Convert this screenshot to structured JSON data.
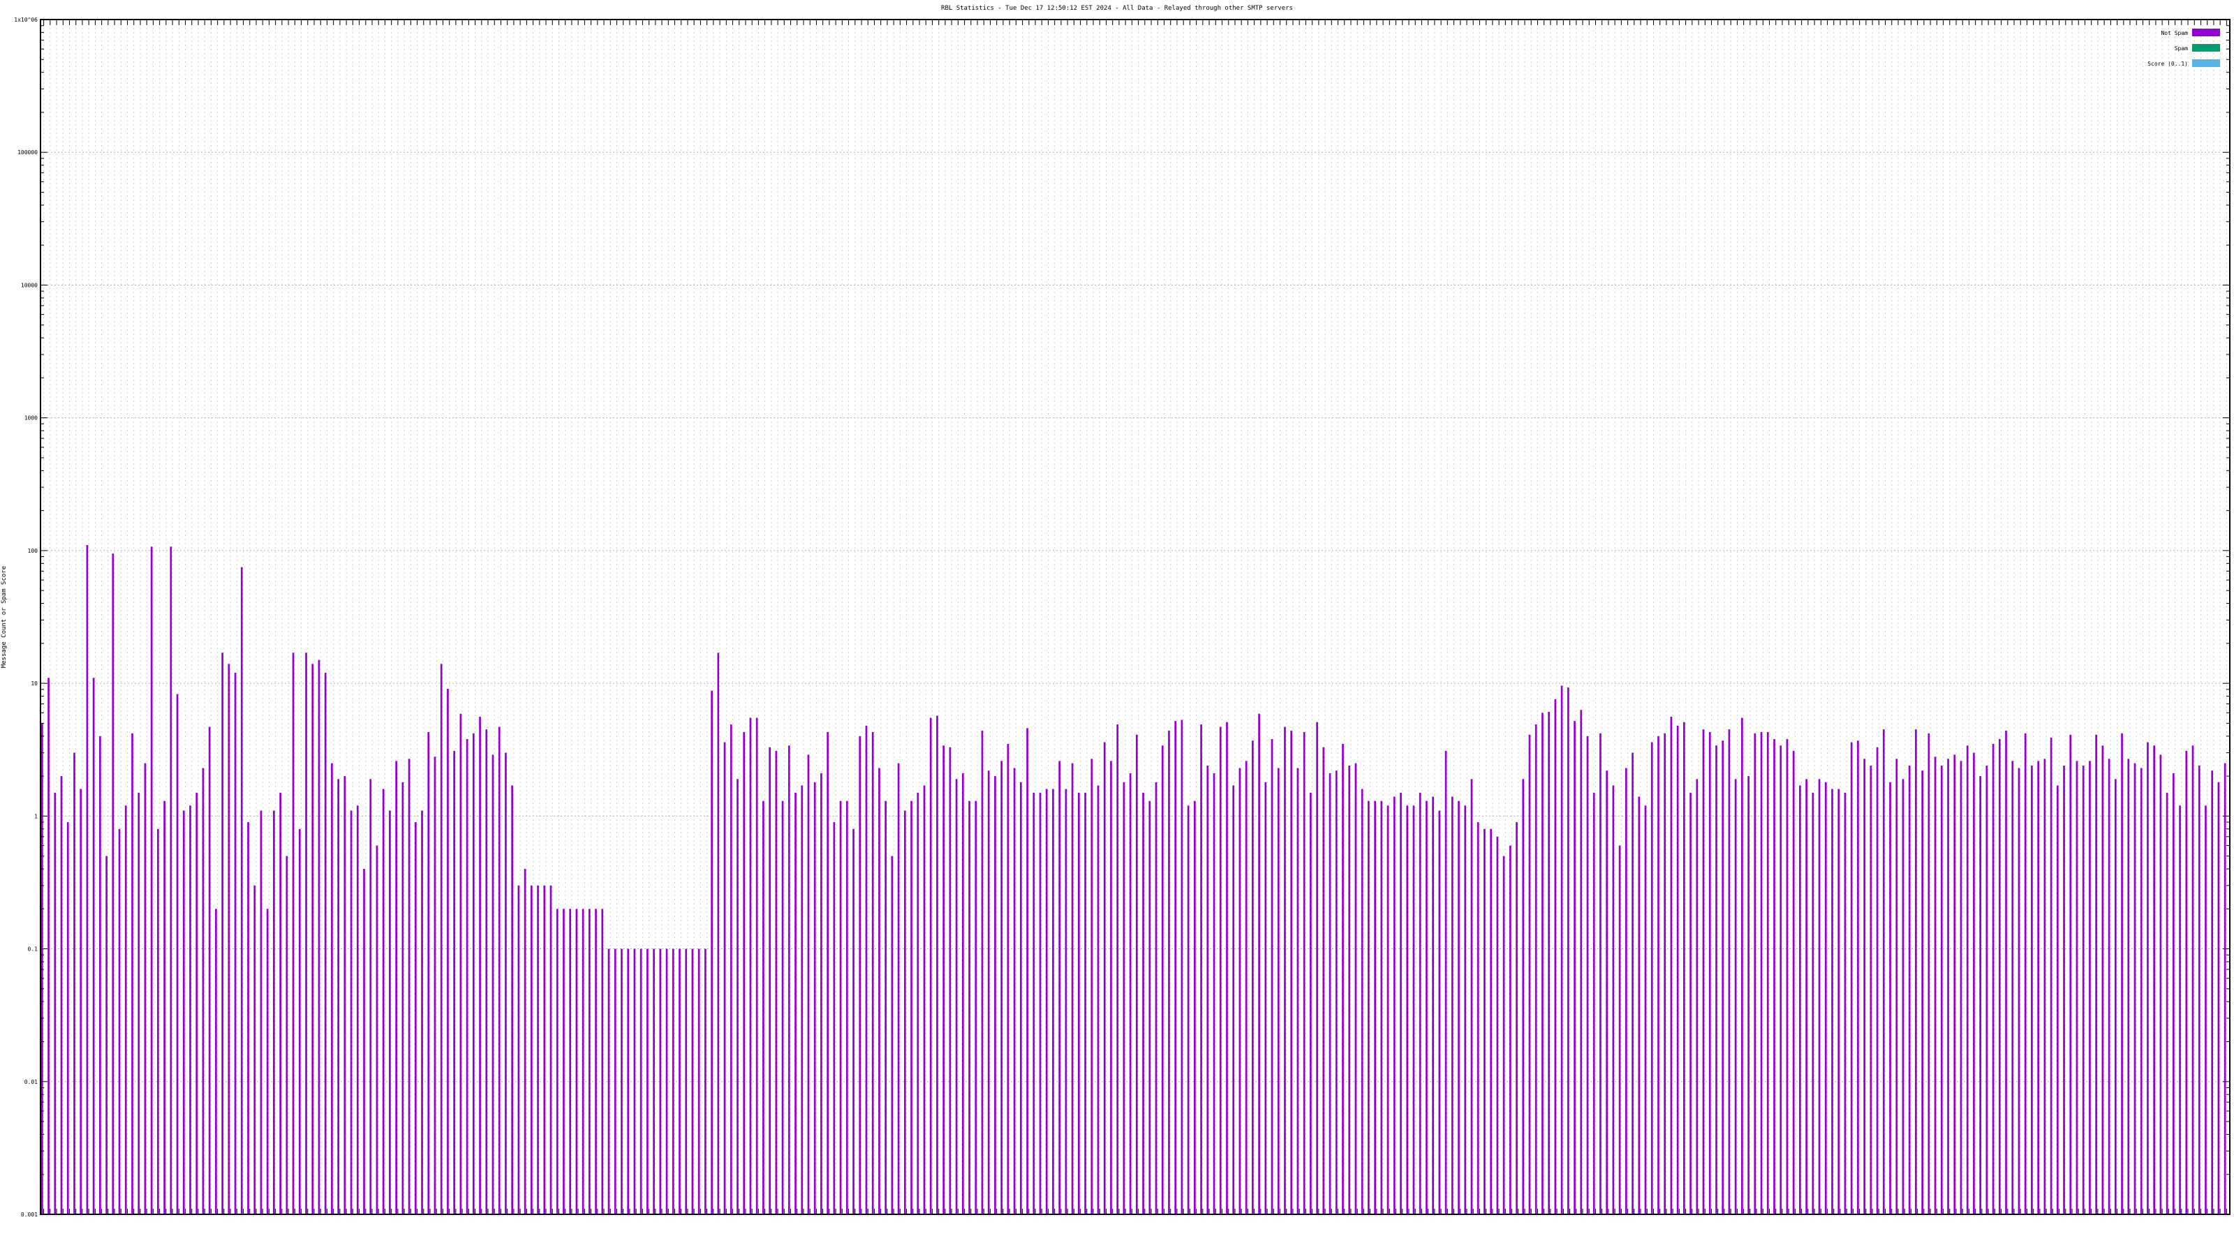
{
  "chart_data": {
    "type": "bar",
    "title": "RBL Statistics - Tue Dec 17 12:50:12 EST 2024 - All Data - Relayed through other SMTP servers",
    "ylabel": "Message Count or Spam Score",
    "y_scale": "log",
    "ylim": [
      0.001,
      1000000
    ],
    "y_ticks": [
      "0.001",
      "0.01",
      "0.1",
      "1",
      "10",
      "100",
      "1000",
      "10000",
      "100000",
      "1x10^06"
    ],
    "grid": true,
    "legend_position": "top-right",
    "series": [
      {
        "name": "Not Spam",
        "color": "#9400d3",
        "values": [
          5,
          11,
          1.5,
          2,
          0.9,
          3,
          1.6,
          110,
          11,
          4,
          0.5,
          95,
          0.8,
          1.2,
          4.2,
          1.5,
          2.5,
          107,
          0.8,
          1.3,
          107,
          8.3,
          1.1,
          1.2,
          1.5,
          2.3,
          4.7,
          0.2,
          17,
          14,
          12,
          75,
          0.9,
          0.3,
          1.1,
          0.2,
          1.1,
          1.5,
          0.5,
          17,
          0.8,
          17,
          14,
          15,
          12,
          2.5,
          1.9,
          2,
          1.1,
          1.2,
          0.4,
          1.9,
          0.6,
          1.6,
          1.1,
          2.6,
          1.8,
          2.7,
          0.9,
          1.1,
          4.3,
          2.8,
          14,
          9.1,
          3.1,
          5.9,
          3.8,
          4.2,
          5.6,
          4.5,
          2.9,
          4.7,
          3,
          1.7,
          0.3,
          0.4,
          0.3,
          0.3,
          0.3,
          0.3,
          0.2,
          0.2,
          0.2,
          0.2,
          0.2,
          0.2,
          0.2,
          0.2,
          0.1,
          0.1,
          0.1,
          0.1,
          0.1,
          0.1,
          0.1,
          0.1,
          0.1,
          0.1,
          0.1,
          0.1,
          0.1,
          0.1,
          0.1,
          0.1,
          8.8,
          17,
          3.6,
          4.9,
          1.9,
          4.3,
          5.5,
          5.5,
          1.3,
          3.3,
          3.1,
          1.3,
          3.4,
          1.5,
          1.7,
          2.9,
          1.8,
          2.1,
          4.3,
          0.9,
          1.3,
          1.3,
          0.8,
          4,
          4.8,
          4.3,
          2.3,
          1.3,
          0.5,
          2.5,
          1.1,
          1.3,
          1.5,
          1.7,
          5.5,
          5.7,
          3.4,
          3.3,
          1.9,
          2.1,
          1.3,
          1.3,
          4.4,
          2.2,
          2,
          2.6,
          3.5,
          2.3,
          1.8,
          4.6,
          1.5,
          1.5,
          1.6,
          1.6,
          2.6,
          1.6,
          2.5,
          1.5,
          1.5,
          2.7,
          1.7,
          3.6,
          2.6,
          4.9,
          1.8,
          2.1,
          4.1,
          1.5,
          1.3,
          1.8,
          3.4,
          4.4,
          5.2,
          5.3,
          1.2,
          1.3,
          4.9,
          2.4,
          2.1,
          4.7,
          5.1,
          1.7,
          2.3,
          2.6,
          3.7,
          5.9,
          1.8,
          3.8,
          2.3,
          4.7,
          4.4,
          2.3,
          4.3,
          1.5,
          5.1,
          3.3,
          2.1,
          2.2,
          3.5,
          2.4,
          2.5,
          1.6,
          1.3,
          1.3,
          1.3,
          1.2,
          1.4,
          1.5,
          1.2,
          1.2,
          1.5,
          1.3,
          1.4,
          1.1,
          3.1,
          1.4,
          1.3,
          1.2,
          1.9,
          0.9,
          0.8,
          0.8,
          0.7,
          0.5,
          0.6,
          0.9,
          1.9,
          4.1,
          4.9,
          6,
          6.1,
          7.6,
          9.6,
          9.3,
          5.2,
          6.3,
          4,
          1.5,
          4.2,
          2.2,
          1.7,
          0.6,
          2.3,
          3,
          1.4,
          1.2,
          3.6,
          4,
          4.2,
          5.6,
          4.8,
          5.1,
          1.5,
          1.9,
          4.5,
          4.3,
          3.4,
          3.7,
          4.5,
          1.9,
          5.5,
          2,
          4.2,
          4.3,
          4.3,
          3.8,
          3.4,
          3.8,
          3.1,
          1.7,
          1.9,
          1.5,
          1.9,
          1.8,
          1.6,
          1.6,
          1.5,
          3.6,
          3.7,
          2.7,
          2.4,
          3.3,
          4.5,
          1.8,
          2.7,
          1.9,
          2.4,
          4.5,
          2.2,
          4.2,
          2.8,
          2.4,
          2.7,
          2.9,
          2.6,
          3.4,
          3,
          2,
          2.4,
          3.5,
          3.8,
          4.4,
          2.6,
          2.3,
          4.2,
          2.4,
          2.6,
          2.7,
          3.9,
          1.7,
          2.4,
          4.1,
          2.6,
          2.4,
          2.6,
          4.1,
          3.4,
          2.7,
          1.9,
          4.2,
          2.7,
          2.5,
          2.3,
          3.6,
          3.4,
          2.9,
          1.5,
          2.1,
          1.2,
          3.1,
          3.4,
          2.4,
          1.2,
          2.2,
          1.8,
          2.5
        ]
      },
      {
        "name": "Spam",
        "color": "#009e73",
        "values": []
      },
      {
        "name": "Score (0..1)",
        "color": "#56b4e9",
        "values": []
      }
    ]
  }
}
